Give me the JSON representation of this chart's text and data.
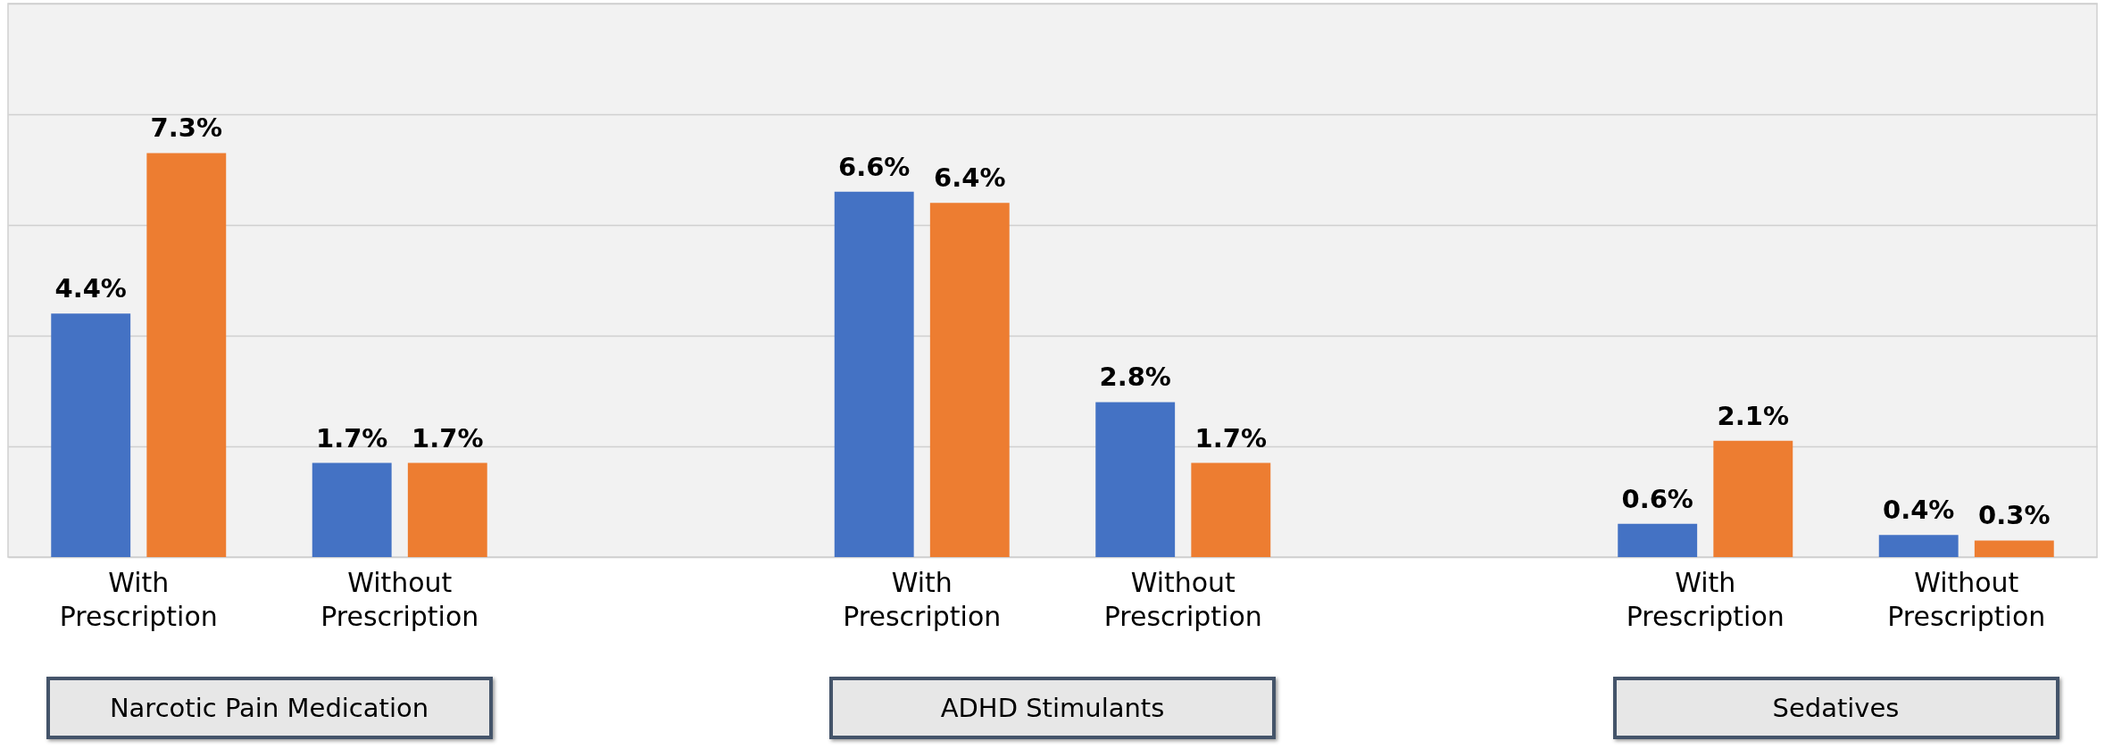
{
  "chart_data": {
    "type": "bar",
    "categories": [
      "With Prescription",
      "Without Prescription",
      null,
      "With Prescription",
      "Without Prescription",
      null,
      "With Prescription",
      "Without Prescription"
    ],
    "series": [
      {
        "color": "#4472c4",
        "values": [
          4.4,
          1.7,
          null,
          6.6,
          2.8,
          null,
          0.6,
          0.4
        ],
        "value_labels": [
          "4.4%",
          "1.7%",
          null,
          "6.6%",
          "2.8%",
          null,
          "0.6%",
          "0.4%"
        ]
      },
      {
        "color": "#ed7d31",
        "values": [
          7.3,
          1.7,
          null,
          6.4,
          1.7,
          null,
          2.1,
          0.3
        ],
        "value_labels": [
          "7.3%",
          "1.7%",
          null,
          "6.4%",
          "1.7%",
          null,
          "2.1%",
          "0.3%"
        ]
      }
    ],
    "ylim": [
      0,
      10
    ],
    "yticks": [
      {
        "value": 0,
        "label": null
      },
      {
        "value": 2,
        "label": null
      },
      {
        "value": 4,
        "label": null
      },
      {
        "value": 6,
        "label": null
      },
      {
        "value": 8,
        "label": null
      },
      {
        "value": 10,
        "label": null
      }
    ],
    "grid": true,
    "annotations": [
      "Narcotic Pain Medication",
      "ADHD Stimulants",
      "Sedatives"
    ]
  }
}
